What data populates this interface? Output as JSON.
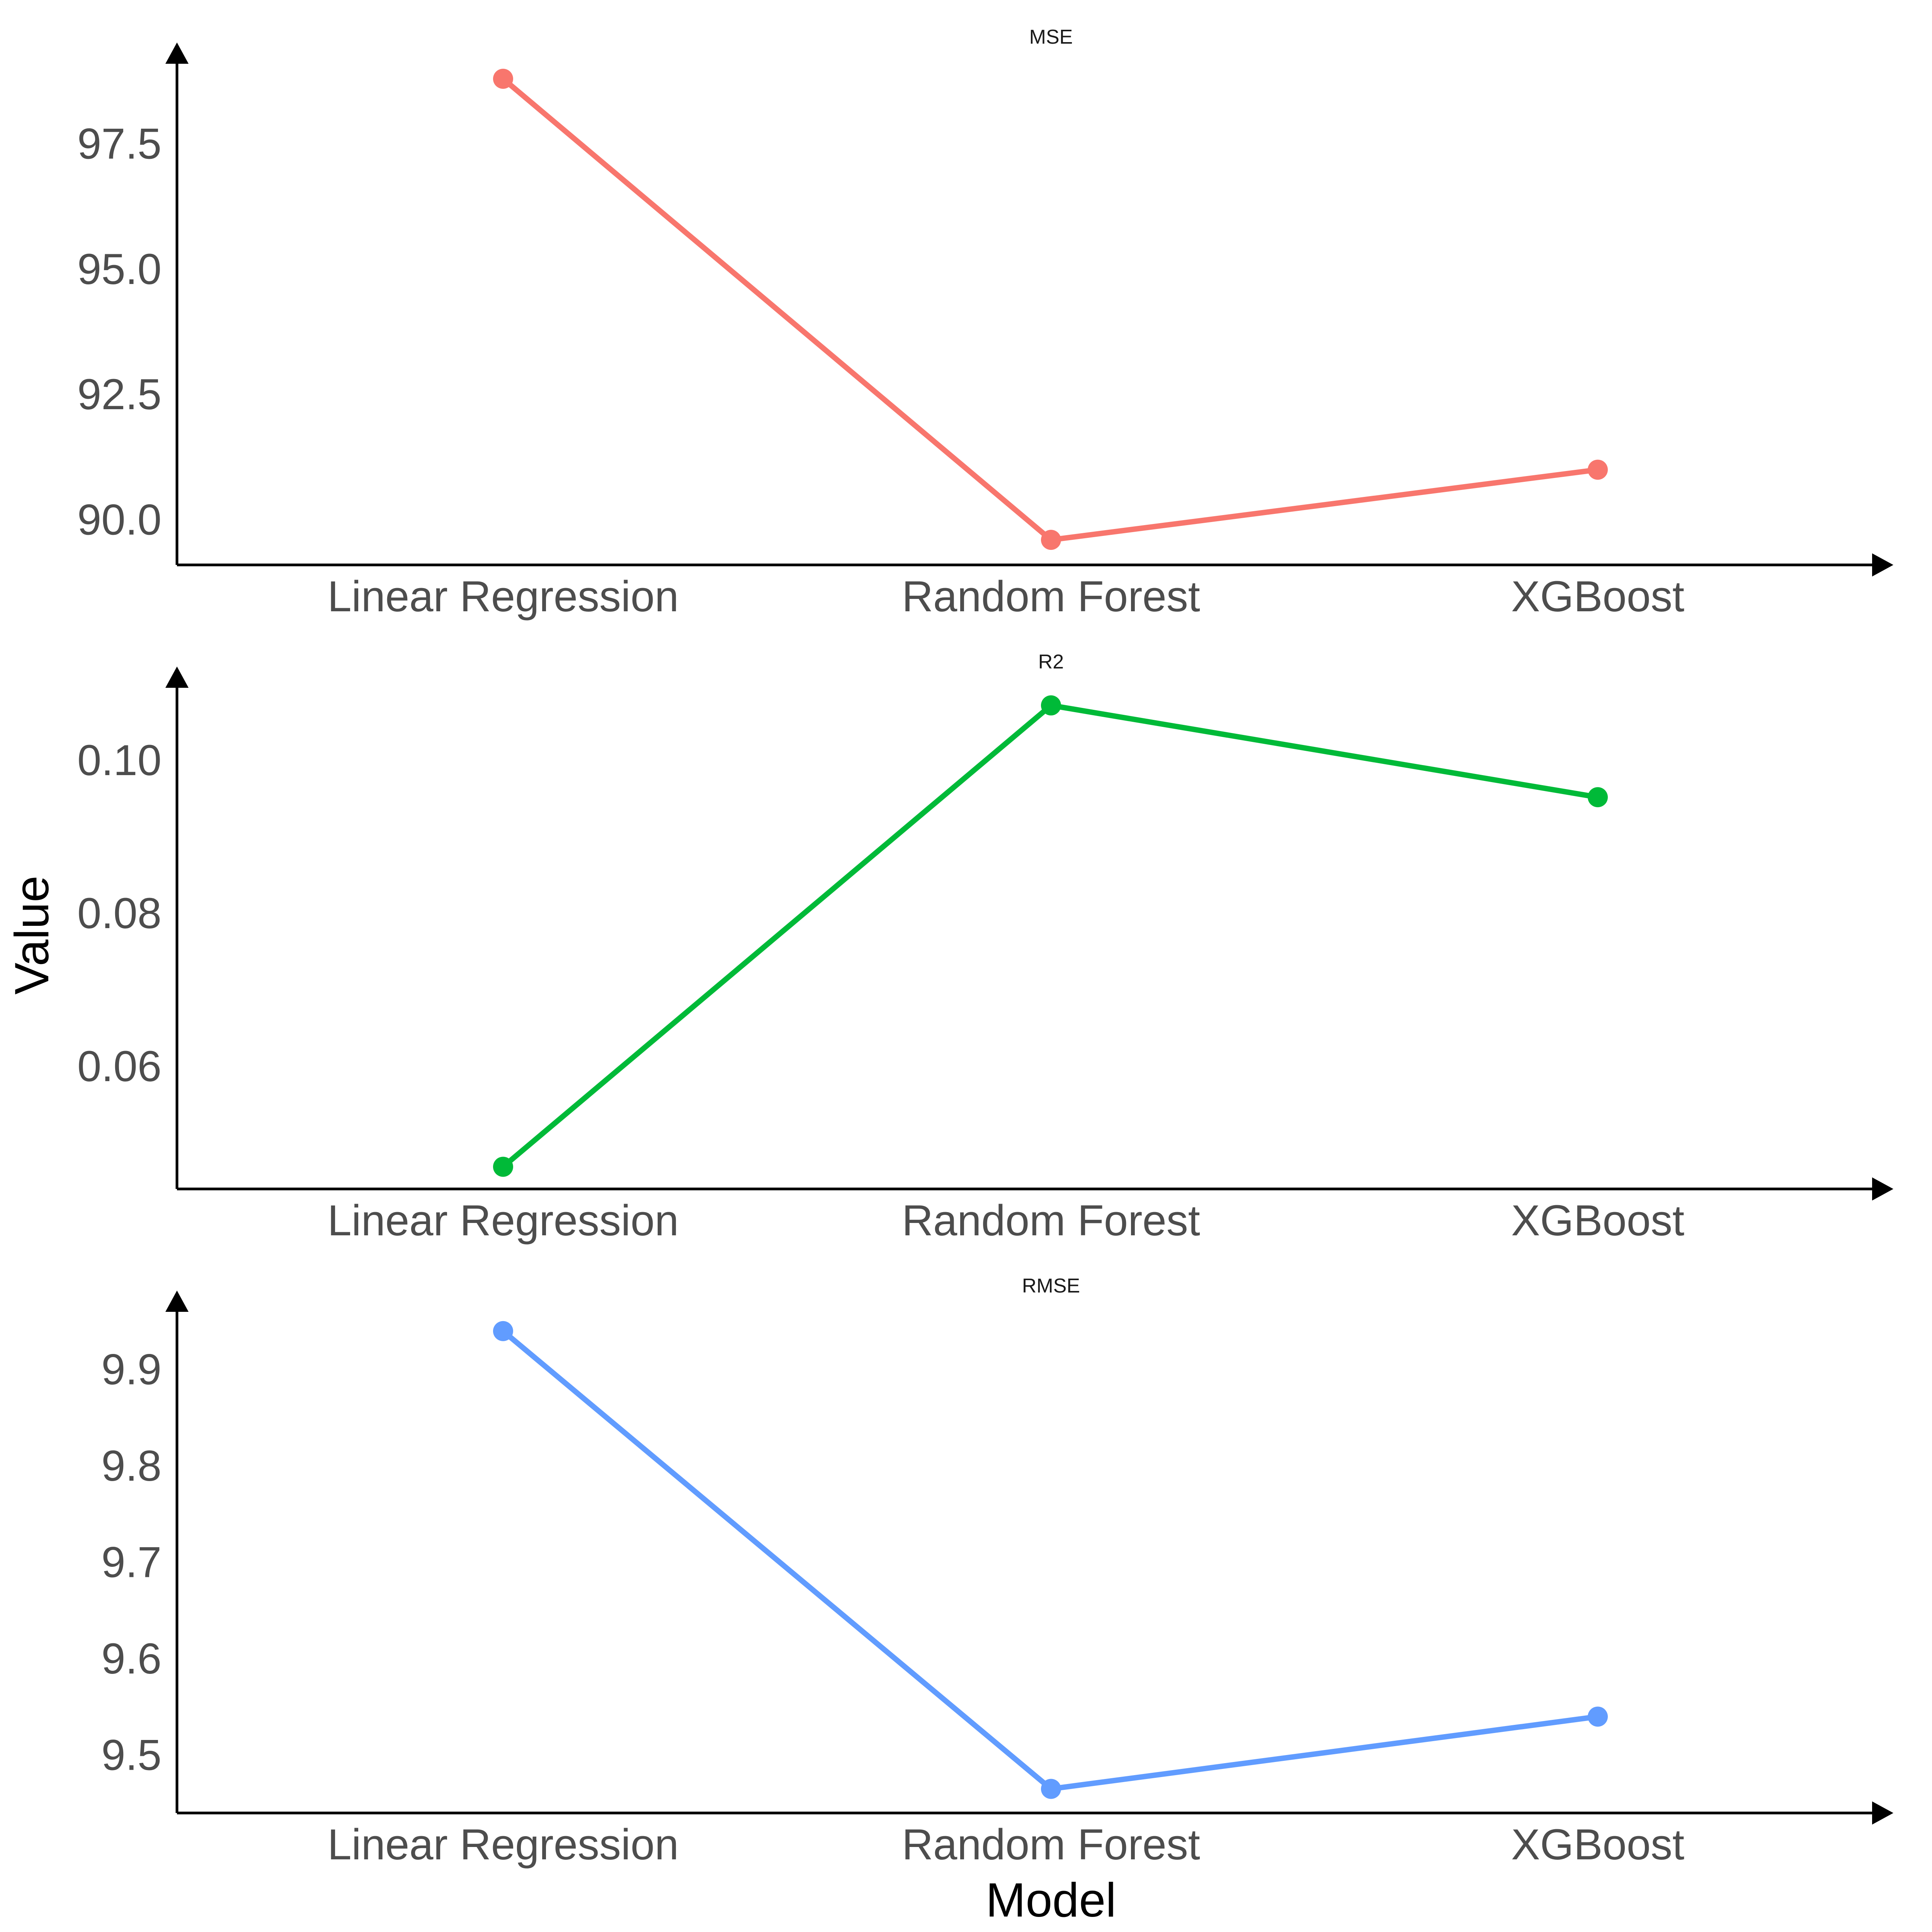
{
  "chart_data": {
    "type": "line",
    "xlabel": "Model",
    "ylabel": "Value",
    "grid": false,
    "legend": "none",
    "categories": [
      "Linear Regression",
      "Random Forest",
      "XGBoost"
    ],
    "panels": [
      {
        "title": "MSE",
        "color": "#F8766D",
        "values": [
          98.8,
          89.6,
          91.0
        ],
        "ylim": [
          89.1,
          99.1
        ],
        "yticks": [
          90.0,
          92.5,
          95.0,
          97.5
        ],
        "ytick_labels": [
          "90.0",
          "92.5",
          "95.0",
          "97.5"
        ]
      },
      {
        "title": "R2",
        "color": "#00BA38",
        "values": [
          0.0469,
          0.1072,
          0.0952
        ],
        "ylim": [
          0.044,
          0.1095
        ],
        "yticks": [
          0.06,
          0.08,
          0.1
        ],
        "ytick_labels": [
          "0.06",
          "0.08",
          "0.10"
        ]
      },
      {
        "title": "RMSE",
        "color": "#619CFF",
        "values": [
          9.94,
          9.465,
          9.54
        ],
        "ylim": [
          9.44,
          9.96
        ],
        "yticks": [
          9.5,
          9.6,
          9.7,
          9.8,
          9.9
        ],
        "ytick_labels": [
          "9.5",
          "9.6",
          "9.7",
          "9.8",
          "9.9"
        ]
      }
    ]
  }
}
